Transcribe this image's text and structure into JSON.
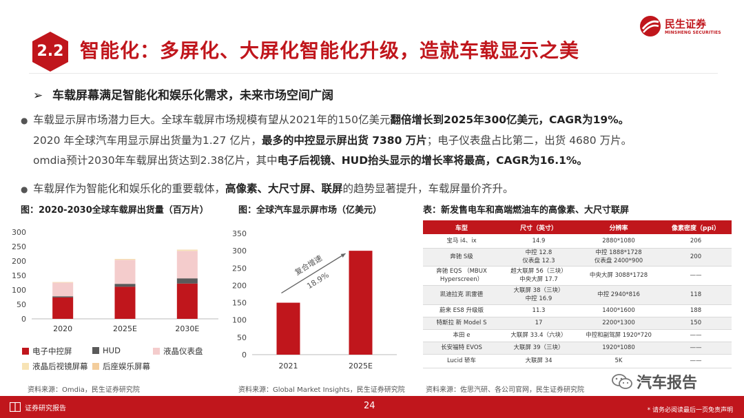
{
  "header": {
    "section_number": "2.2",
    "title": "智能化：多屏化、大屏化智能化升级，造就车载显示之美",
    "logo_cn": "民生证券",
    "logo_en": "MINSHENG SECURITIES"
  },
  "content": {
    "subhead": "车载屏幕满足智能化和娱乐化需求，未来市场空间广阔",
    "p1_line1_a": "车载显示屏市场潜力巨大。全球车载屏市场规模有望从2021年的150亿美元",
    "p1_line1_b": "翻倍增长到2025年300亿美元，CAGR为19%。",
    "p1_line2_a": "2020 年全球汽车用显示屏出货量为1.27 亿片，",
    "p1_line2_b": "最多的中控显示屏出货 7380 万片",
    "p1_line2_c": "；电子仪表盘占比第二，出货 4680 万片。",
    "p1_line3_a": "omdia预计2030年车载屏出货达到2.38亿片，其中",
    "p1_line3_b": "电子后视镜、HUD抬头显示的增长率将最高，CAGR为16.1%。",
    "p2_a": "车载屏作为智能化和娱乐化的重要载体，",
    "p2_b": "高像素、大尺寸屏、联屏",
    "p2_c": "的趋势显著提升，车载屏量价齐升。"
  },
  "captions": {
    "fig1": "图：2020-2030全球车载屏出货量（百万片）",
    "fig2": "图：全球汽车显示屏市场（亿美元）",
    "table": "表：新发售电车和高端燃油车的高像素、大尺寸联屏"
  },
  "chart_data": [
    {
      "type": "bar",
      "stacked": true,
      "categories": [
        "2020",
        "2025E",
        "2030E"
      ],
      "ylim": [
        0,
        300
      ],
      "yticks": [
        0,
        50,
        100,
        150,
        200,
        250,
        300
      ],
      "grid": false,
      "legend_position": "bottom",
      "series": [
        {
          "name": "电子中控屏",
          "color": "#c0161c",
          "values": [
            74,
            111,
            122
          ]
        },
        {
          "name": "HUD",
          "color": "#5a5a5a",
          "values": [
            4,
            10,
            18
          ]
        },
        {
          "name": "液晶仪表盘",
          "color": "#f4cccc",
          "values": [
            47,
            83,
            95
          ]
        },
        {
          "name": "液晶后视镜屏幕",
          "color": "#f7e3b5",
          "values": [
            1,
            2,
            3
          ]
        },
        {
          "name": "后座娱乐屏幕",
          "color": "#f3cd9c",
          "values": [
            1,
            1,
            1
          ]
        }
      ],
      "source": "资料来源：Omdia，民生证券研究院"
    },
    {
      "type": "bar",
      "categories": [
        "2021",
        "2025E"
      ],
      "values": [
        150,
        300
      ],
      "ylim": [
        0,
        350
      ],
      "yticks": [
        0,
        50,
        100,
        150,
        200,
        250,
        300,
        350
      ],
      "color": "#c0161c",
      "annotation": [
        "复合增速",
        "18.9%"
      ],
      "source": "资料来源：Global Market Insights，民生证券研究院"
    }
  ],
  "table": {
    "headers": [
      "车型",
      "尺寸（英寸）",
      "分辨率",
      "像素密度（ppi）"
    ],
    "rows": [
      {
        "model": [
          "宝马 i4、ix"
        ],
        "size": [
          "14.9"
        ],
        "res": [
          "2880*1080"
        ],
        "ppi": [
          "206"
        ]
      },
      {
        "model": [
          "奔驰 S级"
        ],
        "size": [
          "中控 12.8",
          "仪表盘 12.3"
        ],
        "res": [
          "中控 1888*1728",
          "仪表盘 2400*900"
        ],
        "ppi": [
          "200"
        ]
      },
      {
        "model": [
          "奔驰 EQS （MBUX",
          "Hyperscreen）"
        ],
        "size": [
          "超大联屏 56（三块）",
          "中央大屏 17.7"
        ],
        "res": [
          "中央大屏 3088*1728"
        ],
        "ppi": [
          "——"
        ]
      },
      {
        "model": [
          "凯迪拉克 凯雷德"
        ],
        "size": [
          "大联屏 38（三块）",
          "中控 16.9"
        ],
        "res": [
          "中控 2940*816"
        ],
        "ppi": [
          "118"
        ]
      },
      {
        "model": [
          "蔚来 ES8 升级版"
        ],
        "size": [
          "11.3"
        ],
        "res": [
          "1400*1600"
        ],
        "ppi": [
          "188"
        ]
      },
      {
        "model": [
          "特斯拉 新 Model S"
        ],
        "size": [
          "17"
        ],
        "res": [
          "2200*1300"
        ],
        "ppi": [
          "150"
        ]
      },
      {
        "model": [
          "本田 e"
        ],
        "size": [
          "大联屏 33.4（六块）"
        ],
        "res": [
          "中控和副驾屏 1920*720"
        ],
        "ppi": [
          "——"
        ]
      },
      {
        "model": [
          "长安福特 EVOS"
        ],
        "size": [
          "大联屏 39（三块）"
        ],
        "res": [
          "1920*1080"
        ],
        "ppi": [
          "——"
        ]
      },
      {
        "model": [
          "Lucid 轿车"
        ],
        "size": [
          "大联屏 34"
        ],
        "res": [
          "5K"
        ],
        "ppi": [
          "——"
        ]
      }
    ],
    "source": "资料来源：佐思汽研、各公司官网，民生证券研究院"
  },
  "footer": {
    "left_label": "证券研究报告",
    "page": "24",
    "disclaimer": "* 请务必阅读最后一页免责声明",
    "watermark": "汽车报告"
  }
}
